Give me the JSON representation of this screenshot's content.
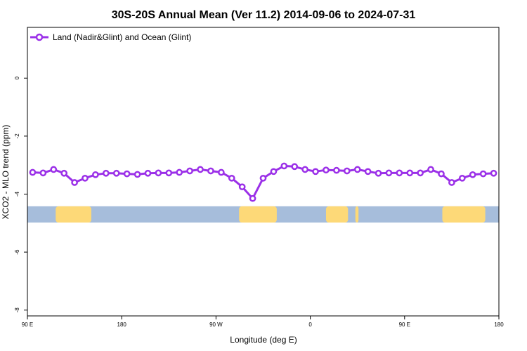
{
  "chart_data": {
    "type": "line",
    "title": "30S-20S Annual Mean (Ver 11.2)   2014-09-06 to 2024-07-31",
    "xlabel": "Longitude (deg E)",
    "ylabel": "XCO2 - MLO trend (ppm)",
    "xlim": [
      90,
      540
    ],
    "ylim": [
      -8.2,
      1.75
    ],
    "x_ticks": [
      {
        "value": 90,
        "label": "90 E"
      },
      {
        "value": 180,
        "label": "180"
      },
      {
        "value": 270,
        "label": "90 W"
      },
      {
        "value": 360,
        "label": "0"
      },
      {
        "value": 450,
        "label": "90 E"
      },
      {
        "value": 540,
        "label": "180"
      }
    ],
    "y_ticks": [
      {
        "value": 0,
        "label": "0"
      },
      {
        "value": -2,
        "label": "-2"
      },
      {
        "value": -4,
        "label": "-4"
      },
      {
        "value": -6,
        "label": "-6"
      },
      {
        "value": -8,
        "label": "-8"
      }
    ],
    "legend_position": "top-left",
    "series": [
      {
        "name": "Land (Nadir&Glint) and Ocean (Glint)",
        "color": "#9b30e8",
        "x": [
          95,
          105,
          115,
          125,
          135,
          145,
          155,
          165,
          175,
          185,
          195,
          205,
          215,
          225,
          235,
          245,
          255,
          265,
          275,
          285,
          295,
          305,
          315,
          325,
          335,
          345,
          355,
          365,
          375,
          385,
          395,
          405,
          415,
          425,
          435,
          445,
          455,
          465,
          475,
          485,
          495,
          505,
          515,
          525,
          535
        ],
        "y": [
          -3.25,
          -3.27,
          -3.15,
          -3.28,
          -3.6,
          -3.45,
          -3.33,
          -3.28,
          -3.28,
          -3.3,
          -3.32,
          -3.28,
          -3.27,
          -3.27,
          -3.25,
          -3.2,
          -3.15,
          -3.2,
          -3.25,
          -3.45,
          -3.75,
          -4.15,
          -3.45,
          -3.22,
          -3.03,
          -3.05,
          -3.15,
          -3.22,
          -3.17,
          -3.18,
          -3.2,
          -3.15,
          -3.22,
          -3.28,
          -3.27,
          -3.27,
          -3.27,
          -3.27,
          -3.15,
          -3.3,
          -3.6,
          -3.45,
          -3.33,
          -3.3,
          -3.28
        ]
      }
    ],
    "land_ocean_strip": {
      "y_range": [
        -4.42,
        -4.98
      ],
      "ocean_color": "#a6bddb",
      "land_color": "#fdd978",
      "land_segments": [
        [
          117,
          151
        ],
        [
          292,
          328
        ],
        [
          375,
          396
        ],
        [
          403,
          406
        ],
        [
          486,
          527
        ]
      ]
    }
  }
}
